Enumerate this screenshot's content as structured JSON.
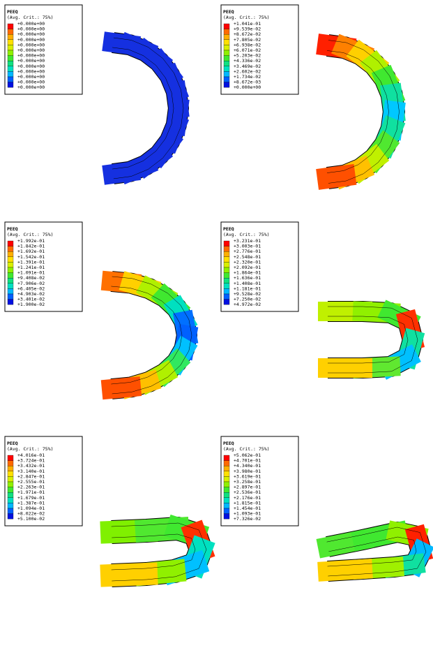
{
  "panels": [
    {
      "legend_title": "PEEQ",
      "legend_subtitle": "(Avg. Crit.: 75%)",
      "legend_labels": [
        "+0.000e+00",
        "+0.000e+00",
        "+0.000e+00",
        "+0.000e+00",
        "+0.000e+00",
        "+0.000e+00",
        "+0.000e+00",
        "+0.000e+00",
        "+0.000e+00",
        "+0.000e+00",
        "+0.000e+00",
        "+0.000e+00",
        "+0.000e+00"
      ]
    },
    {
      "legend_title": "PEEQ",
      "legend_subtitle": "(Avg. Crit.: 75%)",
      "legend_labels": [
        "+1.041e-01",
        "+9.539e-02",
        "+8.672e-02",
        "+7.805e-02",
        "+6.938e-02",
        "+6.071e-02",
        "+5.203e-02",
        "+4.336e-02",
        "+3.469e-02",
        "+2.602e-02",
        "+1.734e-02",
        "+8.672e-03",
        "+0.000e+00"
      ]
    },
    {
      "legend_title": "PEEQ",
      "legend_subtitle": "(Avg. Crit.: 75%)",
      "legend_labels": [
        "+1.992e-01",
        "+1.842e-01",
        "+1.692e-01",
        "+1.542e-01",
        "+1.391e-01",
        "+1.241e-01",
        "+1.091e-01",
        "+9.408e-02",
        "+7.906e-02",
        "+6.405e-02",
        "+4.903e-02",
        "+3.401e-02",
        "+1.900e-02"
      ]
    },
    {
      "legend_title": "PEEQ",
      "legend_subtitle": "(Avg. Crit.: 75%)",
      "legend_labels": [
        "+3.231e-01",
        "+3.003e-01",
        "+2.776e-01",
        "+2.548e-01",
        "+2.320e-01",
        "+2.092e-01",
        "+1.864e-01",
        "+1.636e-01",
        "+1.408e-01",
        "+1.181e-01",
        "+9.528e-02",
        "+7.250e-02",
        "+4.972e-02"
      ]
    },
    {
      "legend_title": "PEEQ",
      "legend_subtitle": "(Avg. Crit.: 75%)",
      "legend_labels": [
        "+4.016e-01",
        "+3.724e-01",
        "+3.432e-01",
        "+3.140e-01",
        "+2.847e-01",
        "+2.555e-01",
        "+2.263e-01",
        "+1.971e-01",
        "+1.679e-01",
        "+1.387e-01",
        "+1.094e-01",
        "+8.022e-02",
        "+5.100e-02"
      ]
    },
    {
      "legend_title": "PEEQ",
      "legend_subtitle": "(Avg. Crit.: 75%)",
      "legend_labels": [
        "+5.062e-01",
        "+4.701e-01",
        "+4.340e-01",
        "+3.980e-01",
        "+3.619e-01",
        "+3.258e-01",
        "+2.897e-01",
        "+2.536e-01",
        "+2.176e-01",
        "+1.815e-01",
        "+1.454e-01",
        "+1.093e-01",
        "+7.326e-02"
      ]
    }
  ]
}
